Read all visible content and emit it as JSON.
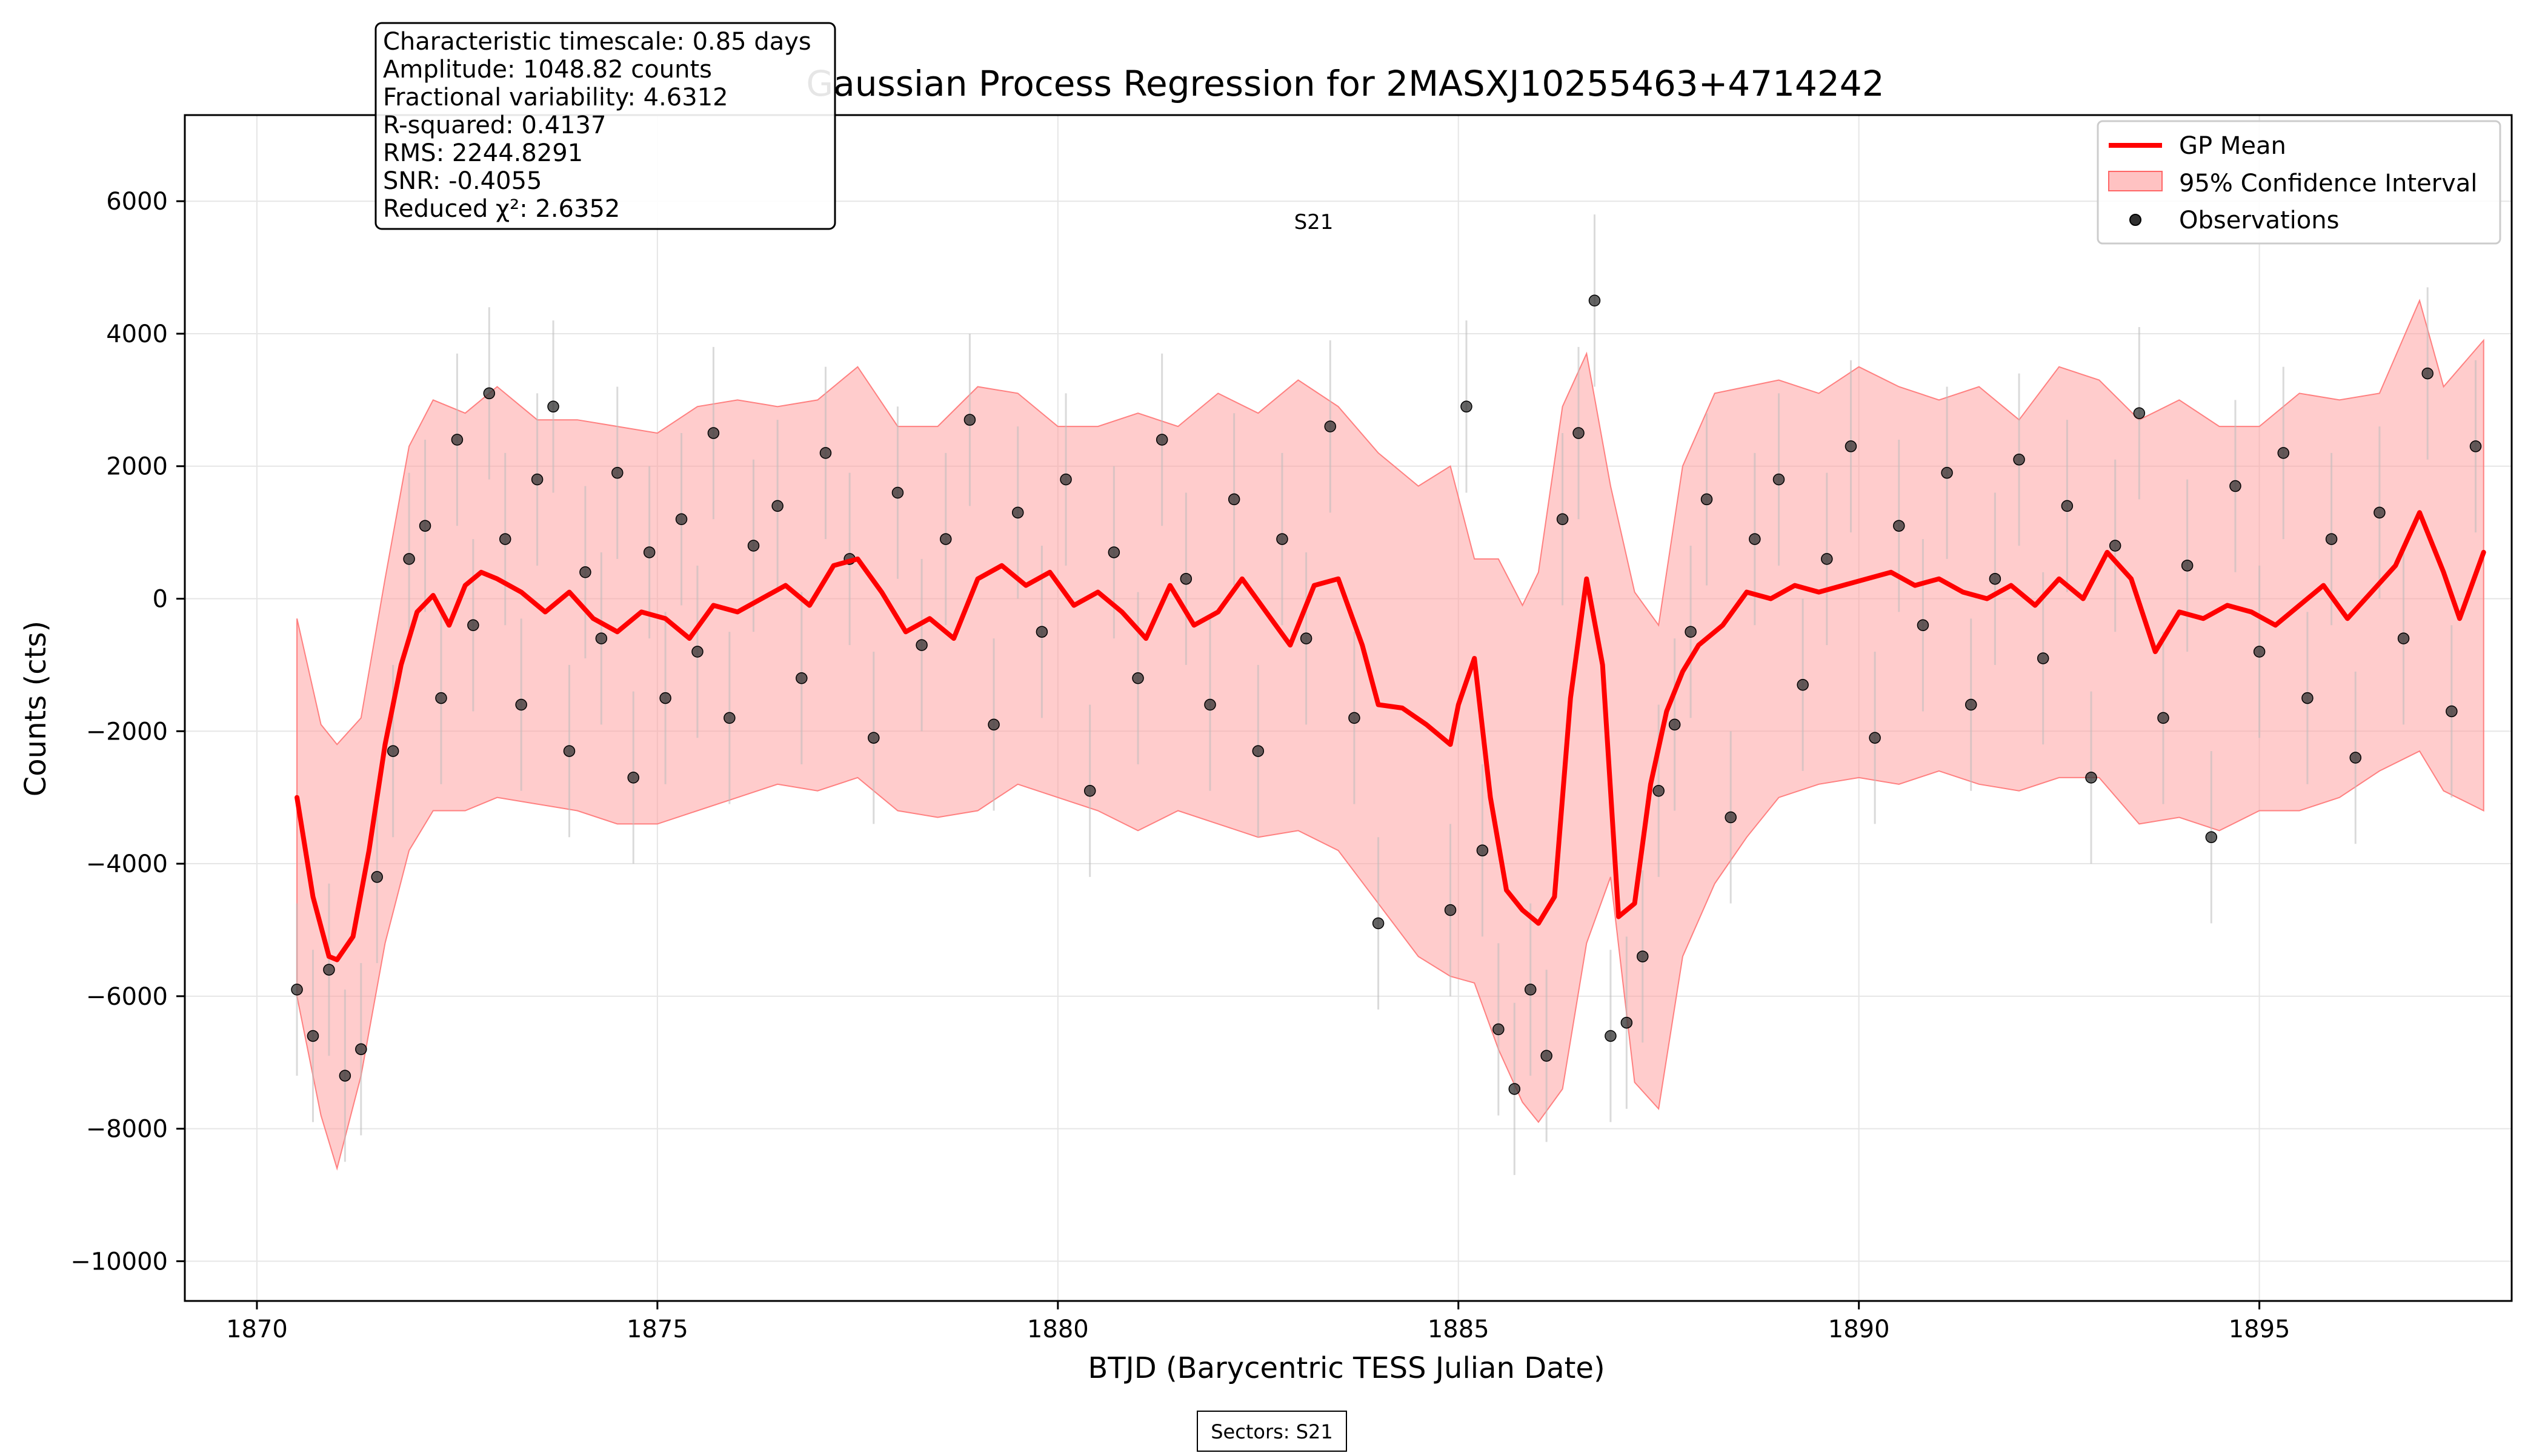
{
  "chart_data": {
    "type": "line",
    "title": "Gaussian Process Regression for 2MASXJ10255463+4714242",
    "xlabel": "BTJD (Barycentric TESS Julian Date)",
    "ylabel": "Counts (cts)",
    "xlim": [
      1869.1,
      1898.15
    ],
    "ylim": [
      -10600,
      7300
    ],
    "xticks": [
      1870,
      1875,
      1880,
      1885,
      1890,
      1895
    ],
    "xtick_labels": [
      "1870",
      "1875",
      "1880",
      "1885",
      "1890",
      "1895"
    ],
    "yticks": [
      -10000,
      -8000,
      -6000,
      -4000,
      -2000,
      0,
      2000,
      4000,
      6000
    ],
    "ytick_labels": [
      "−10000",
      "−8000",
      "−6000",
      "−4000",
      "−2000",
      "0",
      "2000",
      "4000",
      "6000"
    ],
    "grid": true,
    "legend_position": "top-right",
    "legend": [
      "GP Mean",
      "95% Confidence Interval",
      "Observations"
    ],
    "sector_label": "S21",
    "sectors_footer": "Sectors: S21",
    "stats_box": [
      "Characteristic timescale: 0.85 days",
      "Amplitude: 1048.82 counts",
      "Fractional variability: 4.6312",
      "R-squared: 0.4137",
      "RMS: 2244.8291",
      "SNR: -0.4055",
      "Reduced χ²: 2.6352"
    ],
    "gp_mean": {
      "name": "GP Mean",
      "color": "#ff0000",
      "x": [
        1870.5,
        1870.7,
        1870.9,
        1871.0,
        1871.2,
        1871.4,
        1871.6,
        1871.8,
        1872.0,
        1872.2,
        1872.4,
        1872.6,
        1872.8,
        1873.0,
        1873.3,
        1873.6,
        1873.9,
        1874.2,
        1874.5,
        1874.8,
        1875.1,
        1875.4,
        1875.7,
        1876.0,
        1876.3,
        1876.6,
        1876.9,
        1877.2,
        1877.5,
        1877.8,
        1878.1,
        1878.4,
        1878.7,
        1879.0,
        1879.3,
        1879.6,
        1879.9,
        1880.2,
        1880.5,
        1880.8,
        1881.1,
        1881.4,
        1881.7,
        1882.0,
        1882.3,
        1882.6,
        1882.9,
        1883.2,
        1883.5,
        1883.8,
        1884.0,
        1884.3,
        1884.6,
        1884.9,
        1885.0,
        1885.2,
        1885.4,
        1885.6,
        1885.8,
        1886.0,
        1886.2,
        1886.4,
        1886.6,
        1886.8,
        1887.0,
        1887.2,
        1887.4,
        1887.6,
        1887.8,
        1888.0,
        1888.3,
        1888.6,
        1888.9,
        1889.2,
        1889.5,
        1889.8,
        1890.1,
        1890.4,
        1890.7,
        1891.0,
        1891.3,
        1891.6,
        1891.9,
        1892.2,
        1892.5,
        1892.8,
        1893.1,
        1893.4,
        1893.7,
        1894.0,
        1894.3,
        1894.6,
        1894.9,
        1895.2,
        1895.5,
        1895.8,
        1896.1,
        1896.4,
        1896.7,
        1897.0,
        1897.3,
        1897.5,
        1897.8
      ],
      "y": [
        -3000,
        -4500,
        -5400,
        -5450,
        -5100,
        -3800,
        -2200,
        -1000,
        -200,
        50,
        -400,
        200,
        400,
        300,
        100,
        -200,
        100,
        -300,
        -500,
        -200,
        -300,
        -600,
        -100,
        -200,
        0,
        200,
        -100,
        500,
        600,
        100,
        -500,
        -300,
        -600,
        300,
        500,
        200,
        400,
        -100,
        100,
        -200,
        -600,
        200,
        -400,
        -200,
        300,
        -200,
        -700,
        200,
        300,
        -700,
        -1600,
        -1650,
        -1900,
        -2200,
        -1600,
        -900,
        -3000,
        -4400,
        -4700,
        -4900,
        -4500,
        -1500,
        300,
        -1000,
        -4800,
        -4600,
        -2800,
        -1700,
        -1100,
        -700,
        -400,
        100,
        0,
        200,
        100,
        200,
        300,
        400,
        200,
        300,
        100,
        0,
        200,
        -100,
        300,
        0,
        700,
        300,
        -800,
        -200,
        -300,
        -100,
        -200,
        -400,
        -100,
        200,
        -300,
        100,
        500,
        1300,
        400,
        -300,
        700
      ]
    },
    "confidence_band": {
      "name": "95% Confidence Interval",
      "color": "#ff6666",
      "x": [
        1870.5,
        1870.8,
        1871.0,
        1871.3,
        1871.6,
        1871.9,
        1872.2,
        1872.6,
        1873.0,
        1873.5,
        1874.0,
        1874.5,
        1875.0,
        1875.5,
        1876.0,
        1876.5,
        1877.0,
        1877.5,
        1878.0,
        1878.5,
        1879.0,
        1879.5,
        1880.0,
        1880.5,
        1881.0,
        1881.5,
        1882.0,
        1882.5,
        1883.0,
        1883.5,
        1884.0,
        1884.5,
        1884.9,
        1885.2,
        1885.5,
        1885.8,
        1886.0,
        1886.3,
        1886.6,
        1886.9,
        1887.2,
        1887.5,
        1887.8,
        1888.2,
        1888.6,
        1889.0,
        1889.5,
        1890.0,
        1890.5,
        1891.0,
        1891.5,
        1892.0,
        1892.5,
        1893.0,
        1893.5,
        1894.0,
        1894.5,
        1895.0,
        1895.5,
        1896.0,
        1896.5,
        1897.0,
        1897.3,
        1897.8
      ],
      "lower": [
        -6000,
        -7800,
        -8600,
        -7200,
        -5200,
        -3800,
        -3200,
        -3200,
        -3000,
        -3100,
        -3200,
        -3400,
        -3400,
        -3200,
        -3000,
        -2800,
        -2900,
        -2700,
        -3200,
        -3300,
        -3200,
        -2800,
        -3000,
        -3200,
        -3500,
        -3200,
        -3400,
        -3600,
        -3500,
        -3800,
        -4600,
        -5400,
        -5700,
        -5800,
        -6800,
        -7600,
        -7900,
        -7400,
        -5200,
        -4200,
        -7300,
        -7700,
        -5400,
        -4300,
        -3600,
        -3000,
        -2800,
        -2700,
        -2800,
        -2600,
        -2800,
        -2900,
        -2700,
        -2700,
        -3400,
        -3300,
        -3500,
        -3200,
        -3200,
        -3000,
        -2600,
        -2300,
        -2900,
        -3200
      ],
      "upper": [
        -300,
        -1900,
        -2200,
        -1800,
        300,
        2300,
        3000,
        2800,
        3200,
        2700,
        2700,
        2600,
        2500,
        2900,
        3000,
        2900,
        3000,
        3500,
        2600,
        2600,
        3200,
        3100,
        2600,
        2600,
        2800,
        2600,
        3100,
        2800,
        3300,
        2900,
        2200,
        1700,
        2000,
        600,
        600,
        -100,
        400,
        2900,
        3700,
        1700,
        100,
        -400,
        2000,
        3100,
        3200,
        3300,
        3100,
        3500,
        3200,
        3000,
        3200,
        2700,
        3500,
        3300,
        2700,
        3000,
        2600,
        2600,
        3100,
        3000,
        3100,
        4500,
        3200,
        3900
      ]
    },
    "observations": {
      "name": "Observations",
      "color": "#303030",
      "x": [
        1870.5,
        1870.7,
        1870.9,
        1871.1,
        1871.3,
        1871.5,
        1871.7,
        1871.9,
        1872.1,
        1872.3,
        1872.5,
        1872.7,
        1872.9,
        1873.1,
        1873.3,
        1873.5,
        1873.7,
        1873.9,
        1874.1,
        1874.3,
        1874.5,
        1874.7,
        1874.9,
        1875.1,
        1875.3,
        1875.5,
        1875.7,
        1875.9,
        1876.2,
        1876.5,
        1876.8,
        1877.1,
        1877.4,
        1877.7,
        1878.0,
        1878.3,
        1878.6,
        1878.9,
        1879.2,
        1879.5,
        1879.8,
        1880.1,
        1880.4,
        1880.7,
        1881.0,
        1881.3,
        1881.6,
        1881.9,
        1882.2,
        1882.5,
        1882.8,
        1883.1,
        1883.4,
        1883.7,
        1884.0,
        1884.9,
        1885.1,
        1885.3,
        1885.5,
        1885.7,
        1885.9,
        1886.1,
        1886.3,
        1886.5,
        1886.7,
        1886.9,
        1887.1,
        1887.3,
        1887.5,
        1887.7,
        1887.9,
        1888.1,
        1888.4,
        1888.7,
        1889.0,
        1889.3,
        1889.6,
        1889.9,
        1890.2,
        1890.5,
        1890.8,
        1891.1,
        1891.4,
        1891.7,
        1892.0,
        1892.3,
        1892.6,
        1892.9,
        1893.2,
        1893.5,
        1893.8,
        1894.1,
        1894.4,
        1894.7,
        1895.0,
        1895.3,
        1895.6,
        1895.9,
        1896.2,
        1896.5,
        1896.8,
        1897.1,
        1897.4,
        1897.7
      ],
      "y": [
        -5900,
        -6600,
        -5600,
        -7200,
        -6800,
        -4200,
        -2300,
        600,
        1100,
        -1500,
        2400,
        -400,
        3100,
        900,
        -1600,
        1800,
        2900,
        -2300,
        400,
        -600,
        1900,
        -2700,
        700,
        -1500,
        1200,
        -800,
        2500,
        -1800,
        800,
        1400,
        -1200,
        2200,
        600,
        -2100,
        1600,
        -700,
        900,
        2700,
        -1900,
        1300,
        -500,
        1800,
        -2900,
        700,
        -1200,
        2400,
        300,
        -1600,
        1500,
        -2300,
        900,
        -600,
        2600,
        -1800,
        -4900,
        -4700,
        2900,
        -3800,
        -6500,
        -7400,
        -5900,
        -6900,
        1200,
        2500,
        4500,
        -6600,
        -6400,
        -5400,
        -2900,
        -1900,
        -500,
        1500,
        -3300,
        900,
        1800,
        -1300,
        600,
        2300,
        -2100,
        1100,
        -400,
        1900,
        -1600,
        300,
        2100,
        -900,
        1400,
        -2700,
        800,
        2800,
        -1800,
        500,
        -3600,
        1700,
        -800,
        2200,
        -1500,
        900,
        -2400,
        1300,
        -600,
        3400,
        -1700,
        2300
      ]
    }
  }
}
